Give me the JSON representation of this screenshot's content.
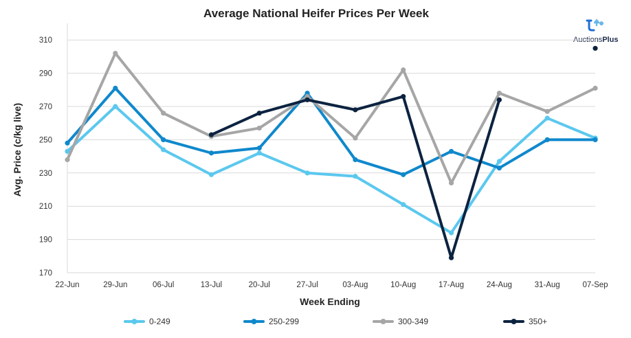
{
  "brand": {
    "name_part1": "Auctions",
    "name_part2": "Plus",
    "logo_icon": "auctionsplus-logo-icon"
  },
  "chart_data": {
    "type": "line",
    "title": "Average National Heifer Prices Per Week",
    "xlabel": "Week Ending",
    "ylabel": "Avg. Price (c/kg live)",
    "ylim": [
      170,
      320
    ],
    "yticks": [
      170,
      190,
      210,
      230,
      250,
      270,
      290,
      310
    ],
    "grid": "horizontal",
    "legend_position": "bottom",
    "categories": [
      "22-Jun",
      "29-Jun",
      "06-Jul",
      "13-Jul",
      "20-Jul",
      "27-Jul",
      "03-Aug",
      "10-Aug",
      "17-Aug",
      "24-Aug",
      "31-Aug",
      "07-Sep"
    ],
    "series": [
      {
        "name": "0-249",
        "color": "#5bc8ef",
        "values": [
          243,
          270,
          244,
          229,
          242,
          230,
          228,
          211,
          194,
          237,
          263,
          251
        ]
      },
      {
        "name": "250-299",
        "color": "#0f88cc",
        "values": [
          248,
          281,
          250,
          242,
          245,
          278,
          238,
          229,
          243,
          233,
          250,
          250
        ]
      },
      {
        "name": "300-349",
        "color": "#a6a6a6",
        "values": [
          238,
          302,
          266,
          252,
          257,
          276,
          251,
          292,
          224,
          278,
          267,
          281
        ]
      },
      {
        "name": "350+",
        "color": "#0c2340",
        "values": [
          null,
          null,
          null,
          253,
          266,
          274,
          268,
          276,
          179,
          274,
          null,
          305
        ]
      }
    ]
  }
}
